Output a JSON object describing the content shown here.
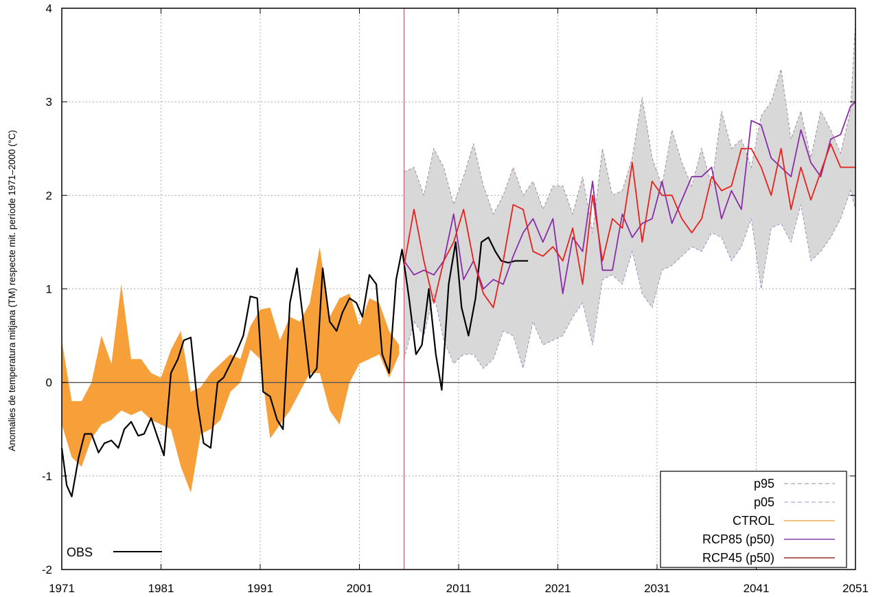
{
  "chart_data": {
    "type": "line",
    "ylabel": "Anomalies de temperatura mitjana (TM) respecte mit. període 1971–2000 (°C)",
    "xlabel": "",
    "title": "",
    "xlim": [
      1971,
      2051
    ],
    "ylim": [
      -2,
      4
    ],
    "x_ticks": [
      1971,
      1981,
      1991,
      2001,
      2011,
      2021,
      2031,
      2041,
      2051
    ],
    "y_ticks": [
      -2,
      -1,
      0,
      1,
      2,
      3,
      4
    ],
    "grid": true,
    "legend_position": "bottom-right",
    "vertical_marker_x": 2005.5,
    "legend": [
      {
        "label": "p95",
        "color": "#b09aa8",
        "style": "dashed"
      },
      {
        "label": "p05",
        "color": "#a9aec8",
        "style": "dashed"
      },
      {
        "label": "CTROL",
        "color": "#e0a030",
        "style": "solid"
      },
      {
        "label": "RCP85 (p50)",
        "color": "#6a1b9a",
        "style": "solid"
      },
      {
        "label": "RCP45 (p50)",
        "color": "#8b0000",
        "style": "solid"
      }
    ],
    "obs_label": "OBS",
    "series": [
      {
        "name": "CTROL",
        "color": "#f7a03a",
        "band": true,
        "x": [
          1971,
          1972,
          1973,
          1974,
          1975,
          1976,
          1977,
          1978,
          1979,
          1980,
          1981,
          1982,
          1983,
          1984,
          1985,
          1986,
          1987,
          1988,
          1989,
          1990,
          1991,
          1992,
          1993,
          1994,
          1995,
          1996,
          1997,
          1998,
          1999,
          2000,
          2001,
          2002,
          2003,
          2004,
          2005
        ],
        "high": [
          0.45,
          -0.2,
          -0.2,
          0.0,
          0.5,
          0.2,
          1.05,
          0.25,
          0.25,
          0.1,
          0.05,
          0.35,
          0.55,
          -0.1,
          -0.05,
          0.1,
          0.2,
          0.3,
          0.25,
          0.6,
          0.78,
          0.8,
          0.45,
          0.7,
          0.65,
          0.85,
          1.45,
          0.7,
          0.9,
          0.95,
          0.6,
          0.9,
          0.85,
          0.55,
          0.4
        ],
        "low": [
          -0.45,
          -0.8,
          -0.9,
          -0.6,
          -0.45,
          -0.4,
          -0.3,
          -0.35,
          -0.3,
          -0.4,
          -0.45,
          -0.5,
          -0.9,
          -1.18,
          -0.55,
          -0.5,
          -0.4,
          -0.1,
          0.0,
          0.35,
          0.25,
          -0.6,
          -0.45,
          -0.3,
          -0.1,
          0.1,
          0.1,
          -0.3,
          -0.45,
          0.0,
          0.2,
          0.25,
          0.3,
          0.05,
          0.3
        ]
      },
      {
        "name": "p95/p05",
        "color": "#d8d8d8",
        "band": true,
        "x": [
          2005.5,
          2006.5,
          2007.5,
          2008.5,
          2009.5,
          2010.5,
          2011.5,
          2012.5,
          2013.5,
          2014.5,
          2015.5,
          2016.5,
          2017.5,
          2018.5,
          2019.5,
          2020.5,
          2021.5,
          2022.5,
          2023.5,
          2024.5,
          2025.5,
          2026.5,
          2027.5,
          2028.5,
          2029.5,
          2030.5,
          2031.5,
          2032.5,
          2033.5,
          2034.5,
          2035.5,
          2036.5,
          2037.5,
          2038.5,
          2039.5,
          2040.5,
          2041.5,
          2042.5,
          2043.5,
          2044.5,
          2045.5,
          2046.5,
          2047.5,
          2048.5,
          2049.5,
          2050.5,
          2051
        ],
        "high": [
          2.25,
          2.3,
          2.0,
          2.5,
          2.3,
          1.9,
          2.2,
          2.55,
          2.1,
          1.8,
          2.0,
          2.3,
          2.0,
          2.15,
          1.85,
          2.1,
          2.1,
          1.8,
          2.2,
          1.6,
          2.5,
          2.0,
          2.05,
          2.4,
          3.05,
          2.4,
          2.1,
          2.7,
          2.35,
          2.1,
          2.5,
          2.1,
          2.9,
          2.5,
          2.6,
          2.3,
          2.85,
          3.0,
          3.35,
          2.6,
          2.9,
          2.4,
          2.9,
          2.7,
          2.45,
          2.9,
          3.85
        ],
        "low": [
          0.25,
          0.65,
          0.5,
          0.95,
          0.45,
          0.2,
          0.3,
          0.3,
          0.15,
          0.25,
          0.55,
          0.5,
          0.15,
          0.65,
          0.4,
          0.45,
          0.5,
          0.7,
          0.85,
          0.4,
          1.1,
          1.15,
          1.05,
          1.4,
          0.95,
          0.8,
          1.2,
          1.25,
          1.35,
          1.45,
          1.4,
          1.6,
          1.55,
          1.3,
          1.45,
          1.75,
          1.0,
          1.65,
          1.7,
          1.5,
          1.9,
          1.3,
          1.4,
          1.55,
          1.75,
          2.05,
          1.85
        ]
      },
      {
        "name": "OBS",
        "color": "#000000",
        "x": [
          1971,
          1971.5,
          1972,
          1972.7,
          1973.3,
          1974,
          1974.7,
          1975.3,
          1976,
          1976.7,
          1977.3,
          1978,
          1978.7,
          1979.3,
          1980,
          1980.7,
          1981.3,
          1982,
          1982.7,
          1983.3,
          1984,
          1984.7,
          1985.3,
          1986,
          1986.7,
          1987.3,
          1988,
          1988.7,
          1989.3,
          1990,
          1990.7,
          1991.3,
          1992,
          1992.7,
          1993.3,
          1994,
          1994.7,
          1995.3,
          1996,
          1996.7,
          1997.3,
          1998,
          1998.7,
          1999.3,
          2000,
          2000.7,
          2001.3,
          2002,
          2002.7,
          2003.3,
          2004,
          2004.7,
          2005.3,
          2006,
          2006.7,
          2007.3,
          2008,
          2008.7,
          2009.3,
          2010,
          2010.7,
          2011.3,
          2012,
          2012.7,
          2013.3,
          2014,
          2014.7,
          2015.3,
          2016,
          2016.7,
          2017.3,
          2018
        ],
        "values": [
          -0.7,
          -1.1,
          -1.22,
          -0.8,
          -0.55,
          -0.55,
          -0.75,
          -0.65,
          -0.62,
          -0.7,
          -0.5,
          -0.42,
          -0.57,
          -0.55,
          -0.38,
          -0.6,
          -0.78,
          0.1,
          0.25,
          0.45,
          0.48,
          -0.25,
          -0.65,
          -0.7,
          0.0,
          0.05,
          0.2,
          0.35,
          0.5,
          0.92,
          0.9,
          -0.1,
          -0.15,
          -0.4,
          -0.5,
          0.85,
          1.22,
          0.7,
          0.05,
          0.15,
          1.22,
          0.65,
          0.55,
          0.75,
          0.9,
          0.85,
          0.7,
          1.15,
          1.05,
          0.3,
          0.1,
          1.1,
          1.42,
          0.9,
          0.3,
          0.4,
          1.0,
          0.3,
          -0.08,
          1.05,
          1.5,
          0.8,
          0.5,
          0.9,
          1.5,
          1.55,
          1.4,
          1.3,
          1.28,
          1.3,
          1.3,
          1.3
        ]
      },
      {
        "name": "RCP85 (p50)",
        "color": "#8a2ba8",
        "x": [
          2005.5,
          2006.5,
          2007.5,
          2008.5,
          2009.5,
          2010.5,
          2011.5,
          2012.5,
          2013.5,
          2014.5,
          2015.5,
          2016.5,
          2017.5,
          2018.5,
          2019.5,
          2020.5,
          2021.5,
          2022.5,
          2023.5,
          2024.5,
          2025.5,
          2026.5,
          2027.5,
          2028.5,
          2029.5,
          2030.5,
          2031.5,
          2032.5,
          2033.5,
          2034.5,
          2035.5,
          2036.5,
          2037.5,
          2038.5,
          2039.5,
          2040.5,
          2041.5,
          2042.5,
          2043.5,
          2044.5,
          2045.5,
          2046.5,
          2047.5,
          2048.5,
          2049.5,
          2050.5,
          2051
        ],
        "values": [
          1.3,
          1.15,
          1.2,
          1.15,
          1.3,
          1.8,
          1.1,
          1.3,
          1.0,
          1.1,
          1.05,
          1.35,
          1.6,
          1.75,
          1.5,
          1.75,
          0.95,
          1.55,
          1.4,
          2.15,
          1.2,
          1.2,
          1.8,
          1.55,
          1.7,
          1.75,
          2.15,
          1.7,
          1.95,
          2.2,
          2.2,
          2.3,
          1.75,
          2.05,
          1.85,
          2.8,
          2.75,
          2.4,
          2.3,
          2.2,
          2.7,
          2.35,
          2.2,
          2.6,
          2.65,
          2.95,
          3.0
        ]
      },
      {
        "name": "RCP45 (p50)",
        "color": "#e8201a",
        "x": [
          2005.5,
          2006.5,
          2007.5,
          2008.5,
          2009.5,
          2010.5,
          2011.5,
          2012.5,
          2013.5,
          2014.5,
          2015.5,
          2016.5,
          2017.5,
          2018.5,
          2019.5,
          2020.5,
          2021.5,
          2022.5,
          2023.5,
          2024.5,
          2025.5,
          2026.5,
          2027.5,
          2028.5,
          2029.5,
          2030.5,
          2031.5,
          2032.5,
          2033.5,
          2034.5,
          2035.5,
          2036.5,
          2037.5,
          2038.5,
          2039.5,
          2040.5,
          2041.5,
          2042.5,
          2043.5,
          2044.5,
          2045.5,
          2046.5,
          2047.5,
          2048.5,
          2049.5,
          2050.5,
          2051
        ],
        "values": [
          1.25,
          1.85,
          1.3,
          0.85,
          1.3,
          1.5,
          1.85,
          1.3,
          0.95,
          0.8,
          1.3,
          1.9,
          1.85,
          1.4,
          1.35,
          1.45,
          1.3,
          1.65,
          1.05,
          2.0,
          1.3,
          1.75,
          1.65,
          2.35,
          1.5,
          2.15,
          2.0,
          2.0,
          1.75,
          1.6,
          1.75,
          2.2,
          2.05,
          2.1,
          2.5,
          2.5,
          2.3,
          2.0,
          2.5,
          1.85,
          2.3,
          1.95,
          2.25,
          2.55,
          2.3,
          2.3,
          2.3
        ]
      }
    ]
  }
}
